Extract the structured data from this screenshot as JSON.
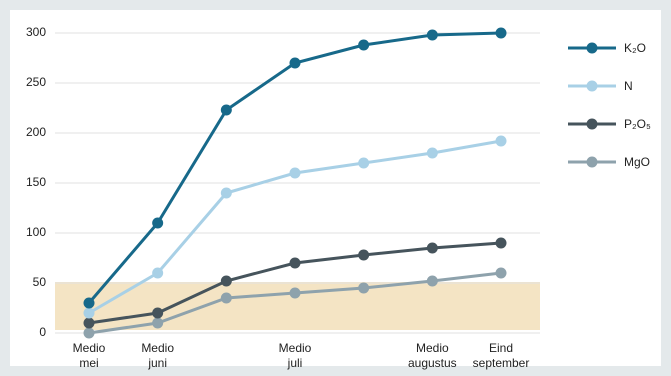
{
  "chart_data": {
    "type": "line",
    "categories": [
      "Medio\nmei",
      "Medio\njuni",
      null,
      "Medio\njuli",
      null,
      "Medio\naugustus",
      "Eind\nseptember"
    ],
    "series": [
      {
        "name": "K₂O",
        "color": "#17698a",
        "values": [
          30,
          110,
          223,
          270,
          288,
          298,
          300
        ]
      },
      {
        "name": "N",
        "color": "#a8d0e6",
        "values": [
          20,
          60,
          140,
          160,
          170,
          180,
          192
        ]
      },
      {
        "name": "P₂O₅",
        "color": "#46545c",
        "values": [
          10,
          20,
          52,
          70,
          78,
          85,
          90
        ]
      },
      {
        "name": "MgO",
        "color": "#8ea2ac",
        "values": [
          0,
          10,
          35,
          40,
          45,
          52,
          60
        ]
      }
    ],
    "ylim": [
      0,
      300
    ],
    "yticks": [
      0,
      50,
      100,
      150,
      200,
      250,
      300
    ],
    "grid": true,
    "legend": "right"
  }
}
